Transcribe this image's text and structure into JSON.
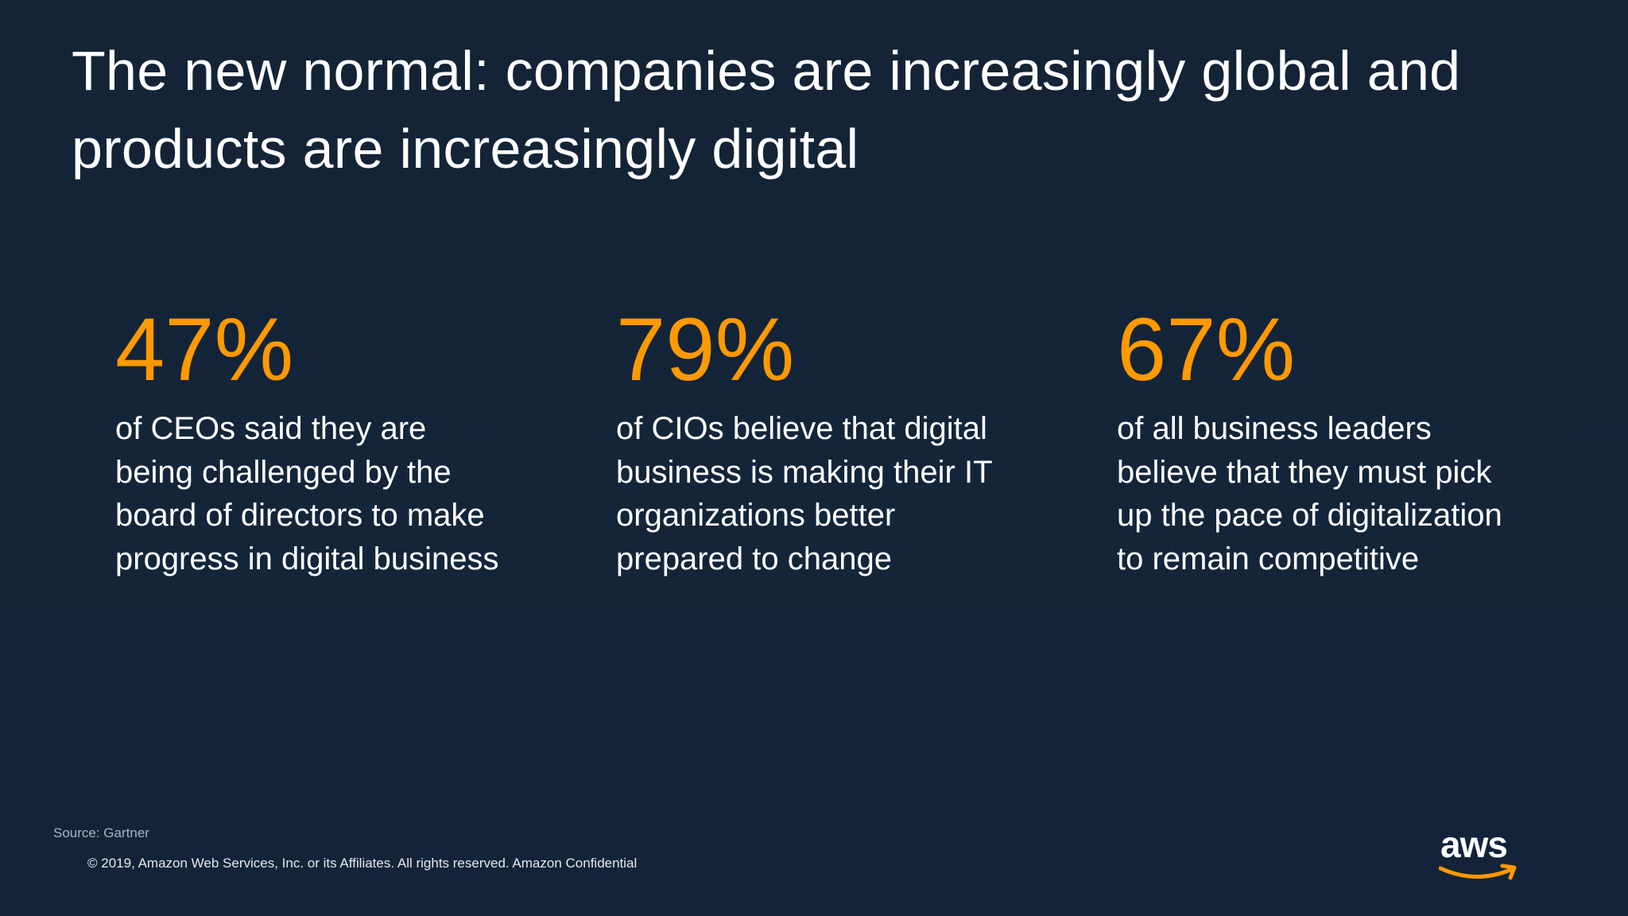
{
  "title": "The new normal: companies are increasingly global and products are increasingly digital",
  "stats": [
    {
      "value": "47%",
      "description": "of CEOs said they are being challenged by the board of directors to make progress in digital business"
    },
    {
      "value": "79%",
      "description": "of CIOs believe that digital business is making their IT organizations better prepared to change"
    },
    {
      "value": "67%",
      "description": "of all business leaders believe that they must pick up the pace of digitalization to remain competitive"
    }
  ],
  "footer": {
    "source": "Source: Gartner",
    "copyright": "© 2019, Amazon Web Services, Inc. or its Affiliates. All rights reserved. Amazon Confidential"
  },
  "logo": {
    "text": "aws",
    "icon": "aws-smile-arrow-icon"
  },
  "colors": {
    "background": "#152436",
    "accent": "#ff9900",
    "text": "#ffffff"
  }
}
